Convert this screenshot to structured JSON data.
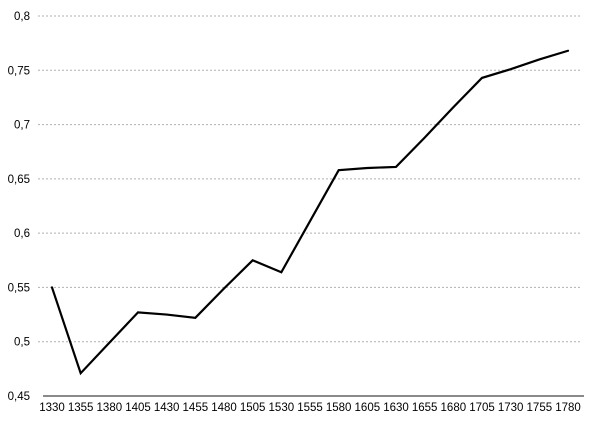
{
  "chart_data": {
    "type": "line",
    "title": "",
    "xlabel": "",
    "ylabel": "",
    "legend": "none",
    "grid": "horizontal-dashed",
    "decimal_separator": ",",
    "categories": [
      "1330",
      "1355",
      "1380",
      "1405",
      "1430",
      "1455",
      "1480",
      "1505",
      "1530",
      "1555",
      "1580",
      "1605",
      "1630",
      "1655",
      "1680",
      "1705",
      "1730",
      "1755",
      "1780"
    ],
    "series": [
      {
        "name": "",
        "values": [
          0.55,
          0.471,
          0.499,
          0.527,
          0.525,
          0.522,
          0.549,
          0.575,
          0.564,
          0.611,
          0.658,
          0.66,
          0.661,
          0.688,
          0.716,
          0.743,
          0.751,
          0.76,
          0.768
        ]
      }
    ],
    "ylim": [
      0.45,
      0.8
    ],
    "y_ticks": [
      {
        "value": 0.45,
        "label": "0,45"
      },
      {
        "value": 0.5,
        "label": "0,5"
      },
      {
        "value": 0.55,
        "label": "0,55"
      },
      {
        "value": 0.6,
        "label": "0,6"
      },
      {
        "value": 0.65,
        "label": "0,65"
      },
      {
        "value": 0.7,
        "label": "0,7"
      },
      {
        "value": 0.75,
        "label": "0,75"
      },
      {
        "value": 0.8,
        "label": "0,8"
      }
    ],
    "colors": {
      "line": "#000000",
      "gridline": "#b0b0b0",
      "axis_line": "#7a7a7a",
      "label_text": "#000000",
      "background": "#ffffff"
    }
  }
}
